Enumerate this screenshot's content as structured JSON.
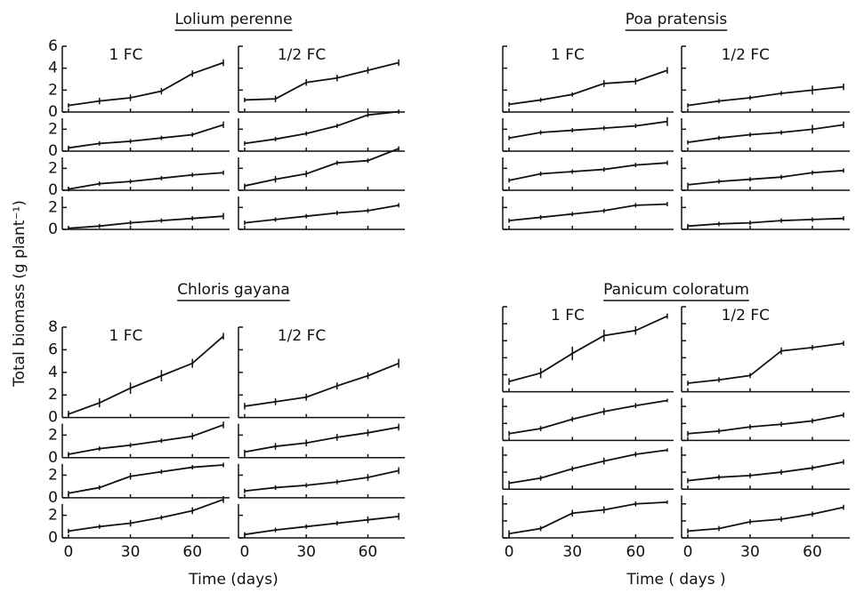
{
  "ylabel": "Total biomass (g plant⁻¹)",
  "chart_data": [
    {
      "type": "line",
      "title": "Lolium perenne",
      "x": [
        0,
        15,
        30,
        45,
        60,
        75
      ],
      "xlim": [
        -3,
        78
      ],
      "xticks": [
        0,
        30,
        60
      ],
      "xtick_labels": false,
      "ytick_labels": true,
      "color": "#111111",
      "rows": [
        {
          "ylim": [
            0,
            6
          ],
          "yticks": [
            0,
            2,
            4,
            6
          ]
        },
        {
          "ylim": [
            0,
            3
          ],
          "yticks": [
            0,
            2
          ]
        },
        {
          "ylim": [
            0,
            3
          ],
          "yticks": [
            0,
            2
          ]
        },
        {
          "ylim": [
            0,
            3
          ],
          "yticks": [
            0,
            2
          ]
        }
      ],
      "panels": [
        {
          "name": "1 FC",
          "series": [
            {
              "values": [
                0.6,
                1.0,
                1.3,
                1.9,
                3.5,
                4.5
              ],
              "errors": [
                0.2,
                0.3,
                0.3,
                0.3,
                0.3,
                0.3
              ]
            },
            {
              "values": [
                0.3,
                0.7,
                0.9,
                1.2,
                1.5,
                2.4
              ],
              "errors": [
                0.2,
                0.2,
                0.2,
                0.2,
                0.2,
                0.3
              ]
            },
            {
              "values": [
                0.1,
                0.6,
                0.8,
                1.1,
                1.4,
                1.6
              ],
              "errors": [
                0.2,
                0.2,
                0.2,
                0.2,
                0.2,
                0.2
              ]
            },
            {
              "values": [
                0.1,
                0.3,
                0.6,
                0.8,
                1.0,
                1.2
              ],
              "errors": [
                0.1,
                0.2,
                0.2,
                0.2,
                0.2,
                0.3
              ]
            }
          ]
        },
        {
          "name": "1/2 FC",
          "series": [
            {
              "values": [
                1.1,
                1.2,
                2.7,
                3.1,
                3.8,
                4.5
              ],
              "errors": [
                0.2,
                0.3,
                0.3,
                0.3,
                0.3,
                0.3
              ]
            },
            {
              "values": [
                0.7,
                1.1,
                1.6,
                2.3,
                3.3,
                3.6
              ],
              "errors": [
                0.2,
                0.2,
                0.2,
                0.2,
                0.2,
                0.2
              ]
            },
            {
              "values": [
                0.4,
                1.0,
                1.5,
                2.5,
                2.7,
                3.8
              ],
              "errors": [
                0.2,
                0.3,
                0.3,
                0.2,
                0.2,
                0.2
              ]
            },
            {
              "values": [
                0.6,
                0.9,
                1.2,
                1.5,
                1.7,
                2.2
              ],
              "errors": [
                0.2,
                0.2,
                0.2,
                0.2,
                0.2,
                0.2
              ]
            }
          ]
        }
      ]
    },
    {
      "type": "line",
      "title": "Poa pratensis",
      "x": [
        0,
        15,
        30,
        45,
        60,
        75
      ],
      "xlim": [
        -3,
        78
      ],
      "xticks": [
        0,
        30,
        60
      ],
      "xtick_labels": false,
      "ytick_labels": false,
      "color": "#111111",
      "rows": [
        {
          "ylim": [
            0,
            6
          ],
          "yticks": [
            0,
            2,
            4,
            6
          ]
        },
        {
          "ylim": [
            0,
            3
          ],
          "yticks": [
            0,
            2
          ]
        },
        {
          "ylim": [
            0,
            3
          ],
          "yticks": [
            0,
            2
          ]
        },
        {
          "ylim": [
            0,
            3
          ],
          "yticks": [
            0,
            2
          ]
        }
      ],
      "panels": [
        {
          "name": "1 FC",
          "series": [
            {
              "values": [
                0.7,
                1.1,
                1.6,
                2.6,
                2.8,
                3.8
              ],
              "errors": [
                0.2,
                0.2,
                0.2,
                0.3,
                0.3,
                0.3
              ]
            },
            {
              "values": [
                1.2,
                1.7,
                1.9,
                2.1,
                2.3,
                2.7
              ],
              "errors": [
                0.2,
                0.2,
                0.2,
                0.2,
                0.2,
                0.4
              ]
            },
            {
              "values": [
                0.9,
                1.5,
                1.7,
                1.9,
                2.3,
                2.5
              ],
              "errors": [
                0.2,
                0.2,
                0.2,
                0.2,
                0.2,
                0.2
              ]
            },
            {
              "values": [
                0.8,
                1.1,
                1.4,
                1.7,
                2.2,
                2.3
              ],
              "errors": [
                0.2,
                0.2,
                0.2,
                0.2,
                0.2,
                0.2
              ]
            }
          ]
        },
        {
          "name": "1/2 FC",
          "series": [
            {
              "values": [
                0.6,
                1.0,
                1.3,
                1.7,
                2.0,
                2.3
              ],
              "errors": [
                0.2,
                0.2,
                0.2,
                0.2,
                0.4,
                0.3
              ]
            },
            {
              "values": [
                0.8,
                1.2,
                1.5,
                1.7,
                2.0,
                2.4
              ],
              "errors": [
                0.2,
                0.2,
                0.2,
                0.2,
                0.4,
                0.3
              ]
            },
            {
              "values": [
                0.5,
                0.8,
                1.0,
                1.2,
                1.6,
                1.8
              ],
              "errors": [
                0.2,
                0.2,
                0.2,
                0.2,
                0.2,
                0.2
              ]
            },
            {
              "values": [
                0.3,
                0.5,
                0.6,
                0.8,
                0.9,
                1.0
              ],
              "errors": [
                0.2,
                0.2,
                0.2,
                0.2,
                0.2,
                0.2
              ]
            }
          ]
        }
      ]
    },
    {
      "type": "line",
      "title": "Chloris gayana",
      "x": [
        0,
        15,
        30,
        45,
        60,
        75
      ],
      "xlim": [
        -3,
        78
      ],
      "xticks": [
        0,
        30,
        60
      ],
      "xtick_labels": true,
      "ytick_labels": true,
      "xlabel": "Time (days)",
      "color": "#111111",
      "rows": [
        {
          "ylim": [
            0,
            8
          ],
          "yticks": [
            0,
            2,
            4,
            6,
            8
          ]
        },
        {
          "ylim": [
            0,
            3
          ],
          "yticks": [
            0,
            2
          ]
        },
        {
          "ylim": [
            0,
            3
          ],
          "yticks": [
            0,
            2
          ]
        },
        {
          "ylim": [
            0,
            3
          ],
          "yticks": [
            0,
            2
          ]
        }
      ],
      "panels": [
        {
          "name": "1 FC",
          "series": [
            {
              "values": [
                0.3,
                1.3,
                2.6,
                3.7,
                4.8,
                7.2
              ],
              "errors": [
                0.3,
                0.4,
                0.5,
                0.5,
                0.4,
                0.3
              ]
            },
            {
              "values": [
                0.3,
                0.8,
                1.1,
                1.5,
                1.9,
                2.9
              ],
              "errors": [
                0.2,
                0.2,
                0.2,
                0.2,
                0.3,
                0.3
              ]
            },
            {
              "values": [
                0.4,
                0.9,
                1.9,
                2.3,
                2.7,
                2.9
              ],
              "errors": [
                0.2,
                0.2,
                0.3,
                0.2,
                0.2,
                0.2
              ]
            },
            {
              "values": [
                0.6,
                1.0,
                1.3,
                1.8,
                2.4,
                3.4
              ],
              "errors": [
                0.2,
                0.2,
                0.3,
                0.2,
                0.3,
                0.3
              ]
            }
          ]
        },
        {
          "name": "1/2 FC",
          "series": [
            {
              "values": [
                1.0,
                1.4,
                1.8,
                2.8,
                3.7,
                4.8
              ],
              "errors": [
                0.3,
                0.3,
                0.3,
                0.3,
                0.3,
                0.4
              ]
            },
            {
              "values": [
                0.5,
                1.0,
                1.3,
                1.8,
                2.2,
                2.7
              ],
              "errors": [
                0.2,
                0.3,
                0.3,
                0.3,
                0.3,
                0.3
              ]
            },
            {
              "values": [
                0.6,
                0.9,
                1.1,
                1.4,
                1.8,
                2.4
              ],
              "errors": [
                0.2,
                0.2,
                0.2,
                0.2,
                0.3,
                0.3
              ]
            },
            {
              "values": [
                0.3,
                0.7,
                1.0,
                1.3,
                1.6,
                1.9
              ],
              "errors": [
                0.2,
                0.2,
                0.2,
                0.2,
                0.3,
                0.3
              ]
            }
          ]
        }
      ]
    },
    {
      "type": "line",
      "title": "Panicum coloratum",
      "x": [
        0,
        15,
        30,
        45,
        60,
        75
      ],
      "xlim": [
        -3,
        78
      ],
      "xticks": [
        0,
        30,
        60
      ],
      "xtick_labels": true,
      "ytick_labels": false,
      "xlabel": "Time ( days )",
      "color": "#111111",
      "rows": [
        {
          "ylim": [
            0,
            10
          ],
          "yticks": [
            0,
            2,
            4,
            6,
            8,
            10
          ]
        },
        {
          "ylim": [
            0,
            5
          ],
          "yticks": [
            0,
            2,
            4
          ]
        },
        {
          "ylim": [
            0,
            5
          ],
          "yticks": [
            0,
            2,
            4
          ]
        },
        {
          "ylim": [
            0,
            5
          ],
          "yticks": [
            0,
            2,
            4
          ]
        }
      ],
      "panels": [
        {
          "name": "1 FC",
          "series": [
            {
              "values": [
                1.2,
                2.2,
                4.5,
                6.6,
                7.2,
                8.9
              ],
              "errors": [
                0.4,
                0.6,
                0.8,
                0.7,
                0.5,
                0.3
              ]
            },
            {
              "values": [
                0.8,
                1.4,
                2.5,
                3.4,
                4.1,
                4.7
              ],
              "errors": [
                0.3,
                0.3,
                0.3,
                0.4,
                0.3,
                0.2
              ]
            },
            {
              "values": [
                0.7,
                1.3,
                2.4,
                3.3,
                4.1,
                4.6
              ],
              "errors": [
                0.3,
                0.3,
                0.3,
                0.4,
                0.3,
                0.2
              ]
            },
            {
              "values": [
                0.5,
                1.1,
                2.9,
                3.3,
                4.0,
                4.2
              ],
              "errors": [
                0.4,
                0.3,
                0.4,
                0.4,
                0.3,
                0.2
              ]
            }
          ]
        },
        {
          "name": "1/2 FC",
          "series": [
            {
              "values": [
                1.0,
                1.4,
                1.9,
                4.8,
                5.2,
                5.7
              ],
              "errors": [
                0.3,
                0.3,
                0.3,
                0.4,
                0.3,
                0.3
              ]
            },
            {
              "values": [
                0.8,
                1.1,
                1.6,
                1.9,
                2.3,
                3.0
              ],
              "errors": [
                0.3,
                0.3,
                0.3,
                0.3,
                0.3,
                0.3
              ]
            },
            {
              "values": [
                1.0,
                1.4,
                1.6,
                2.0,
                2.5,
                3.2
              ],
              "errors": [
                0.3,
                0.3,
                0.3,
                0.3,
                0.3,
                0.3
              ]
            },
            {
              "values": [
                0.8,
                1.1,
                1.9,
                2.2,
                2.8,
                3.6
              ],
              "errors": [
                0.3,
                0.3,
                0.3,
                0.3,
                0.3,
                0.3
              ]
            }
          ]
        }
      ]
    }
  ]
}
